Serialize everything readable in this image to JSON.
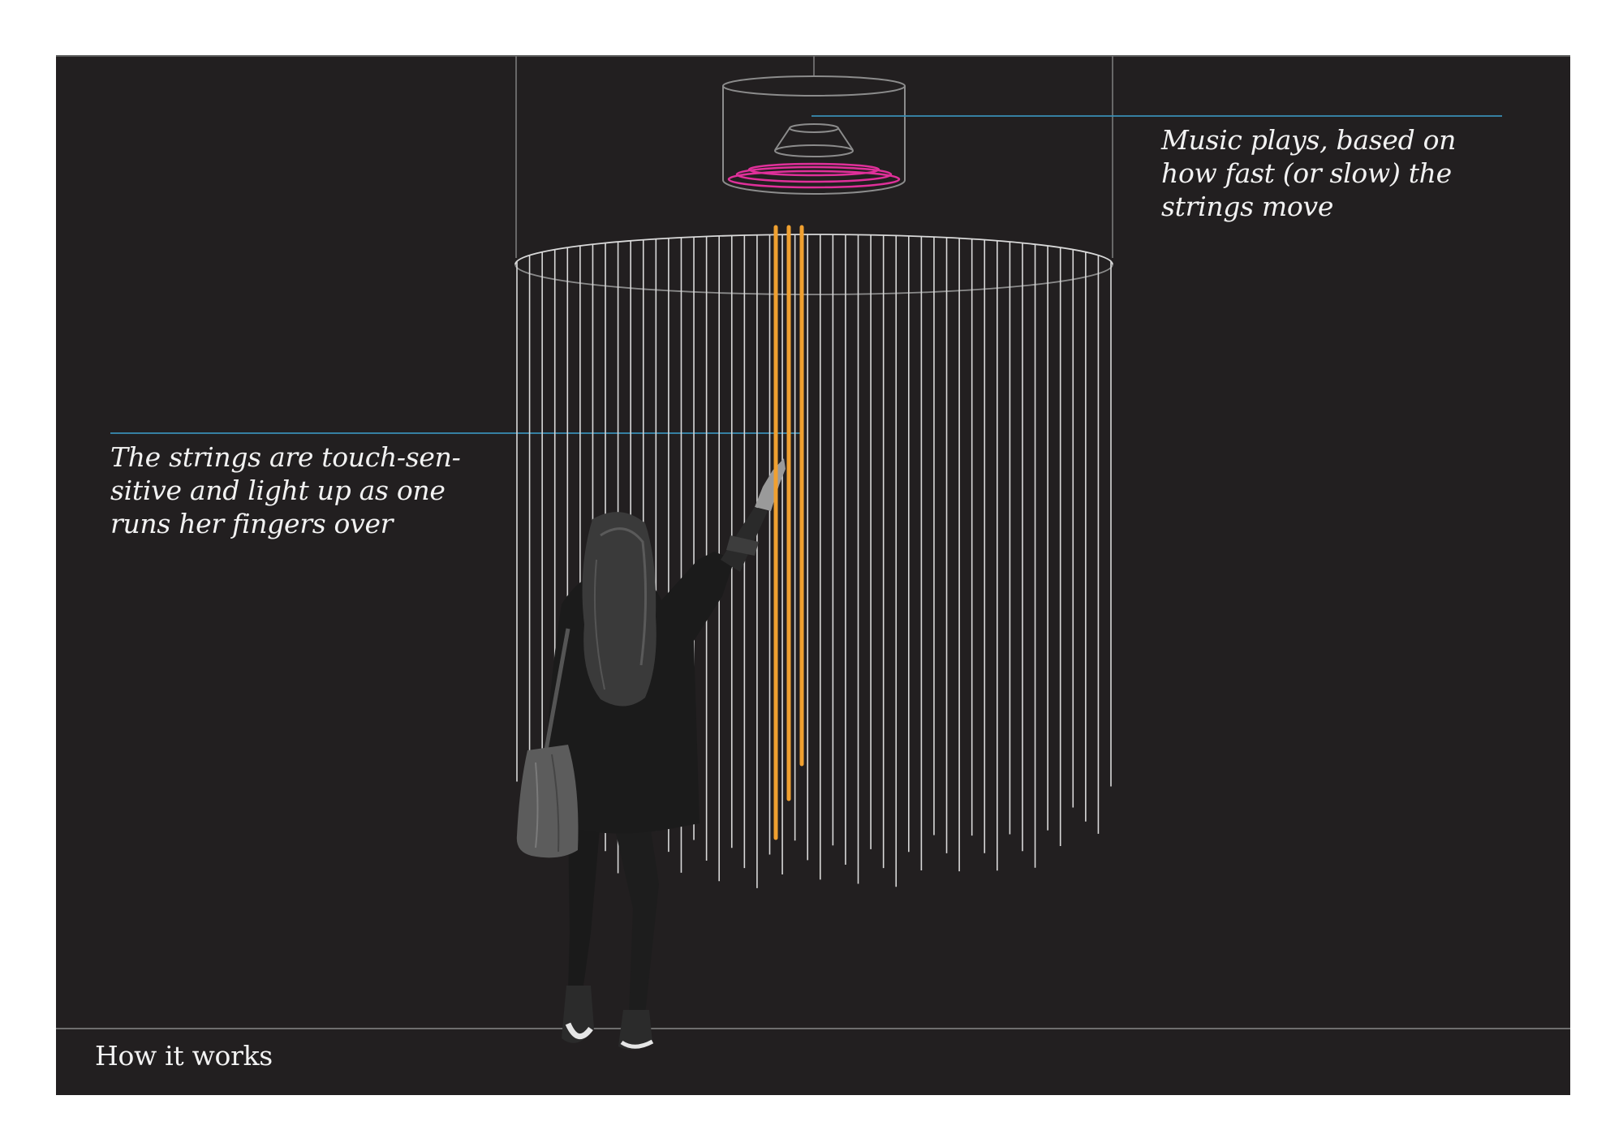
{
  "annotations": {
    "music": "Music plays, based on how fast (or slow) the strings move",
    "strings": "The strings are touch-sensitive and  light up as one runs her fingers over",
    "strings_lines": [
      "The strings are touch-sen-",
      "sitive and  light up as one",
      "runs her fingers over"
    ],
    "music_lines": [
      "Music plays, based on",
      "how fast (or slow) the",
      "strings move"
    ]
  },
  "footer": {
    "title": "How it works"
  },
  "colors": {
    "background": "#221f20",
    "string": "#d9d9d9",
    "active_string": "#f0a030",
    "callout_line": "#3a8fb5",
    "speaker_glow": "#e0309a",
    "frame_line": "#7a7a7a"
  },
  "strings": {
    "count": 48,
    "active_count": 3
  },
  "icons": {
    "speaker": "speaker-icon",
    "person": "woman-silhouette-icon",
    "bag": "handbag-icon"
  }
}
